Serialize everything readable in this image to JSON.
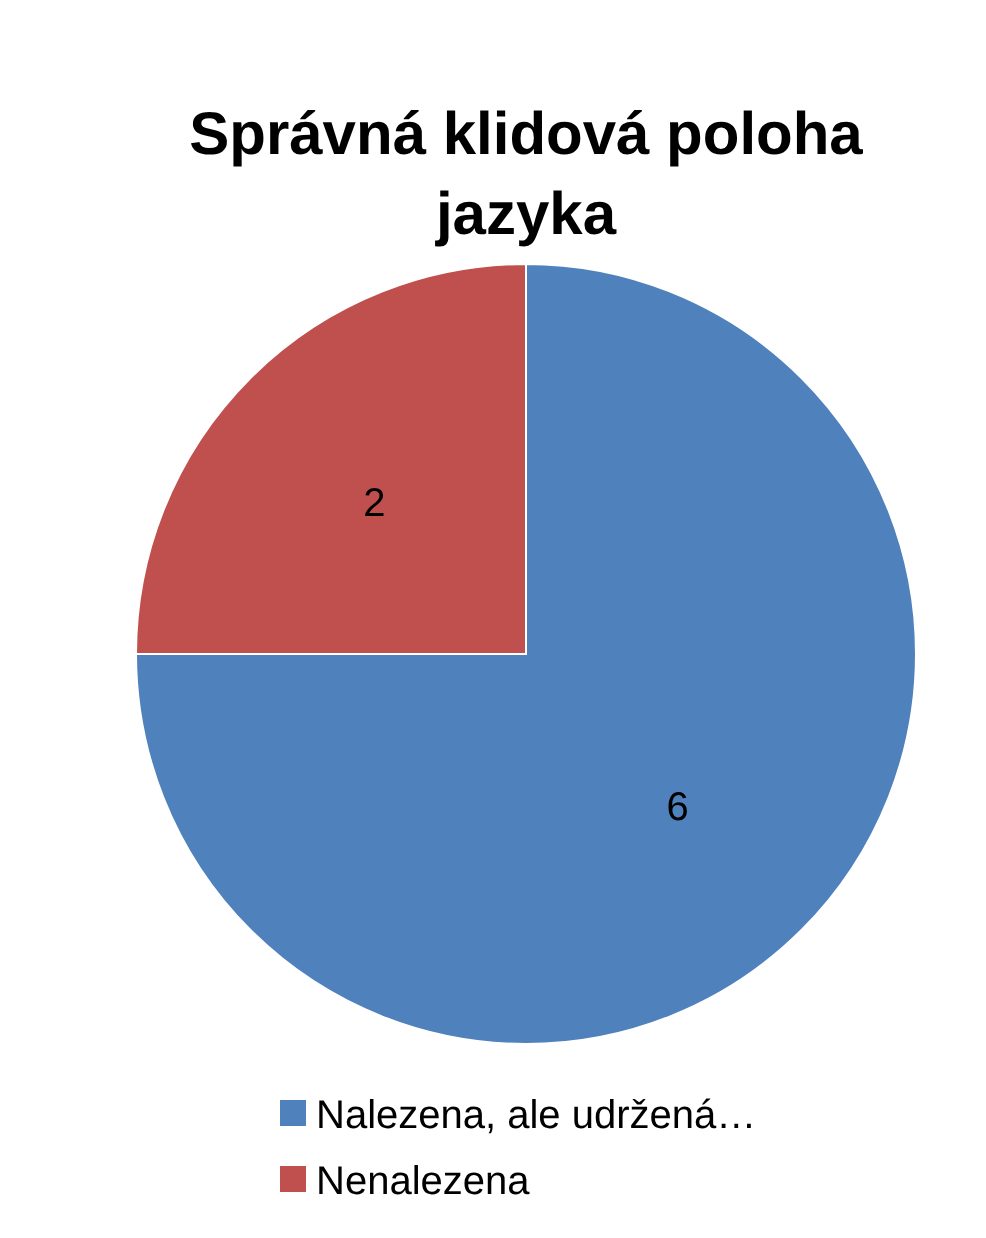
{
  "chart_data": {
    "type": "pie",
    "title": "Správná klidová poloha jazyka",
    "categories": [
      "Nalezena, ale udržená…",
      "Nenalezena"
    ],
    "values": [
      6,
      2
    ],
    "colors": [
      "#4f81bd",
      "#c0504d"
    ],
    "data_labels": true,
    "legend": "bottom"
  }
}
